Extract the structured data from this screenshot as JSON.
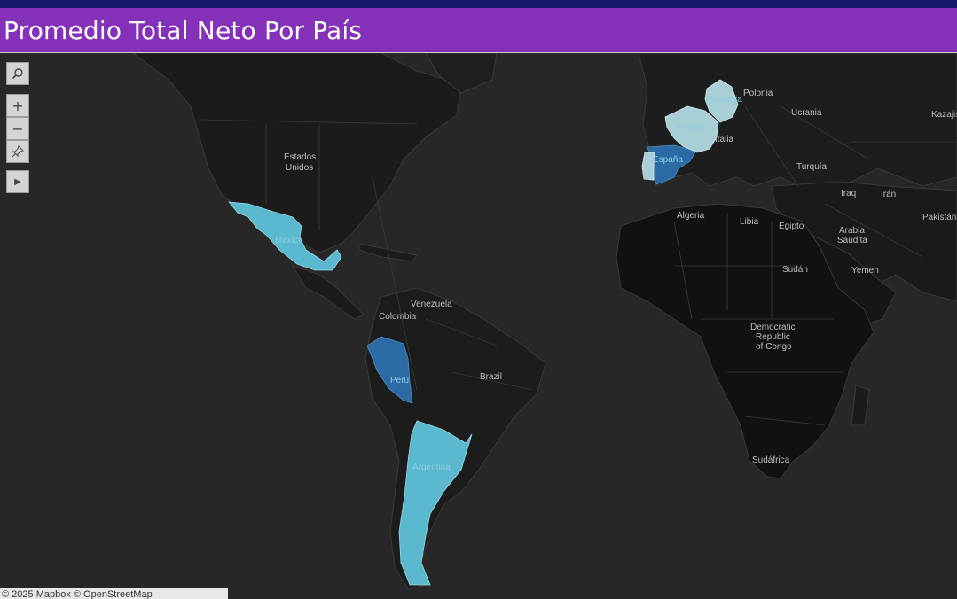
{
  "header": {
    "title": "Promedio Total Neto Por País"
  },
  "colors": {
    "title_bar": "#8530b9",
    "top_strip": "#16196b",
    "land": "#1b1b1b",
    "ocean": "#272727",
    "measure_light": "#a9cfd6",
    "measure_mid": "#5ab8cf",
    "measure_dark": "#2b6aa5"
  },
  "map_toolbar": {
    "search_icon": "magnifier",
    "zoom_in_icon": "+",
    "zoom_out_icon": "−",
    "pin_icon": "pushpin",
    "expand_icon": "▶"
  },
  "countries": [
    {
      "name": "Mexico",
      "label": "Mexico",
      "shade": "mid"
    },
    {
      "name": "Peru",
      "label": "Peru",
      "shade": "dark"
    },
    {
      "name": "Argentina",
      "label": "Argentina",
      "shade": "mid"
    },
    {
      "name": "España",
      "label": "España",
      "shade": "dark"
    },
    {
      "name": "Portugal",
      "label": "",
      "shade": "light"
    },
    {
      "name": "Francia",
      "label": "Francia",
      "shade": "light"
    },
    {
      "name": "Alemania",
      "label": "Alemania",
      "shade": "light"
    }
  ],
  "map_labels": {
    "estados": "Estados",
    "unidos": "Unidos",
    "venezuela": "Venezuela",
    "colombia": "Colombia",
    "brazil": "Brazil",
    "polonia": "Polonia",
    "ucrania": "Ucrania",
    "kazajistan": "Kazajistá",
    "italia": "Italia",
    "turquia": "Turquía",
    "iraq": "Iraq",
    "iran": "Irán",
    "pakistan": "Pakistán",
    "argelia": "Algeria",
    "libia": "Libia",
    "egipto": "Egipto",
    "arabia": "Arabia",
    "saudita": "Saudita",
    "yemen": "Yemen",
    "sudan": "Sudán",
    "drc1": "Democratic",
    "drc2": "Republic",
    "drc3": "of Congo",
    "sudafrica": "Sudáfrica"
  },
  "attribution": "© 2025 Mapbox © OpenStreetMap"
}
